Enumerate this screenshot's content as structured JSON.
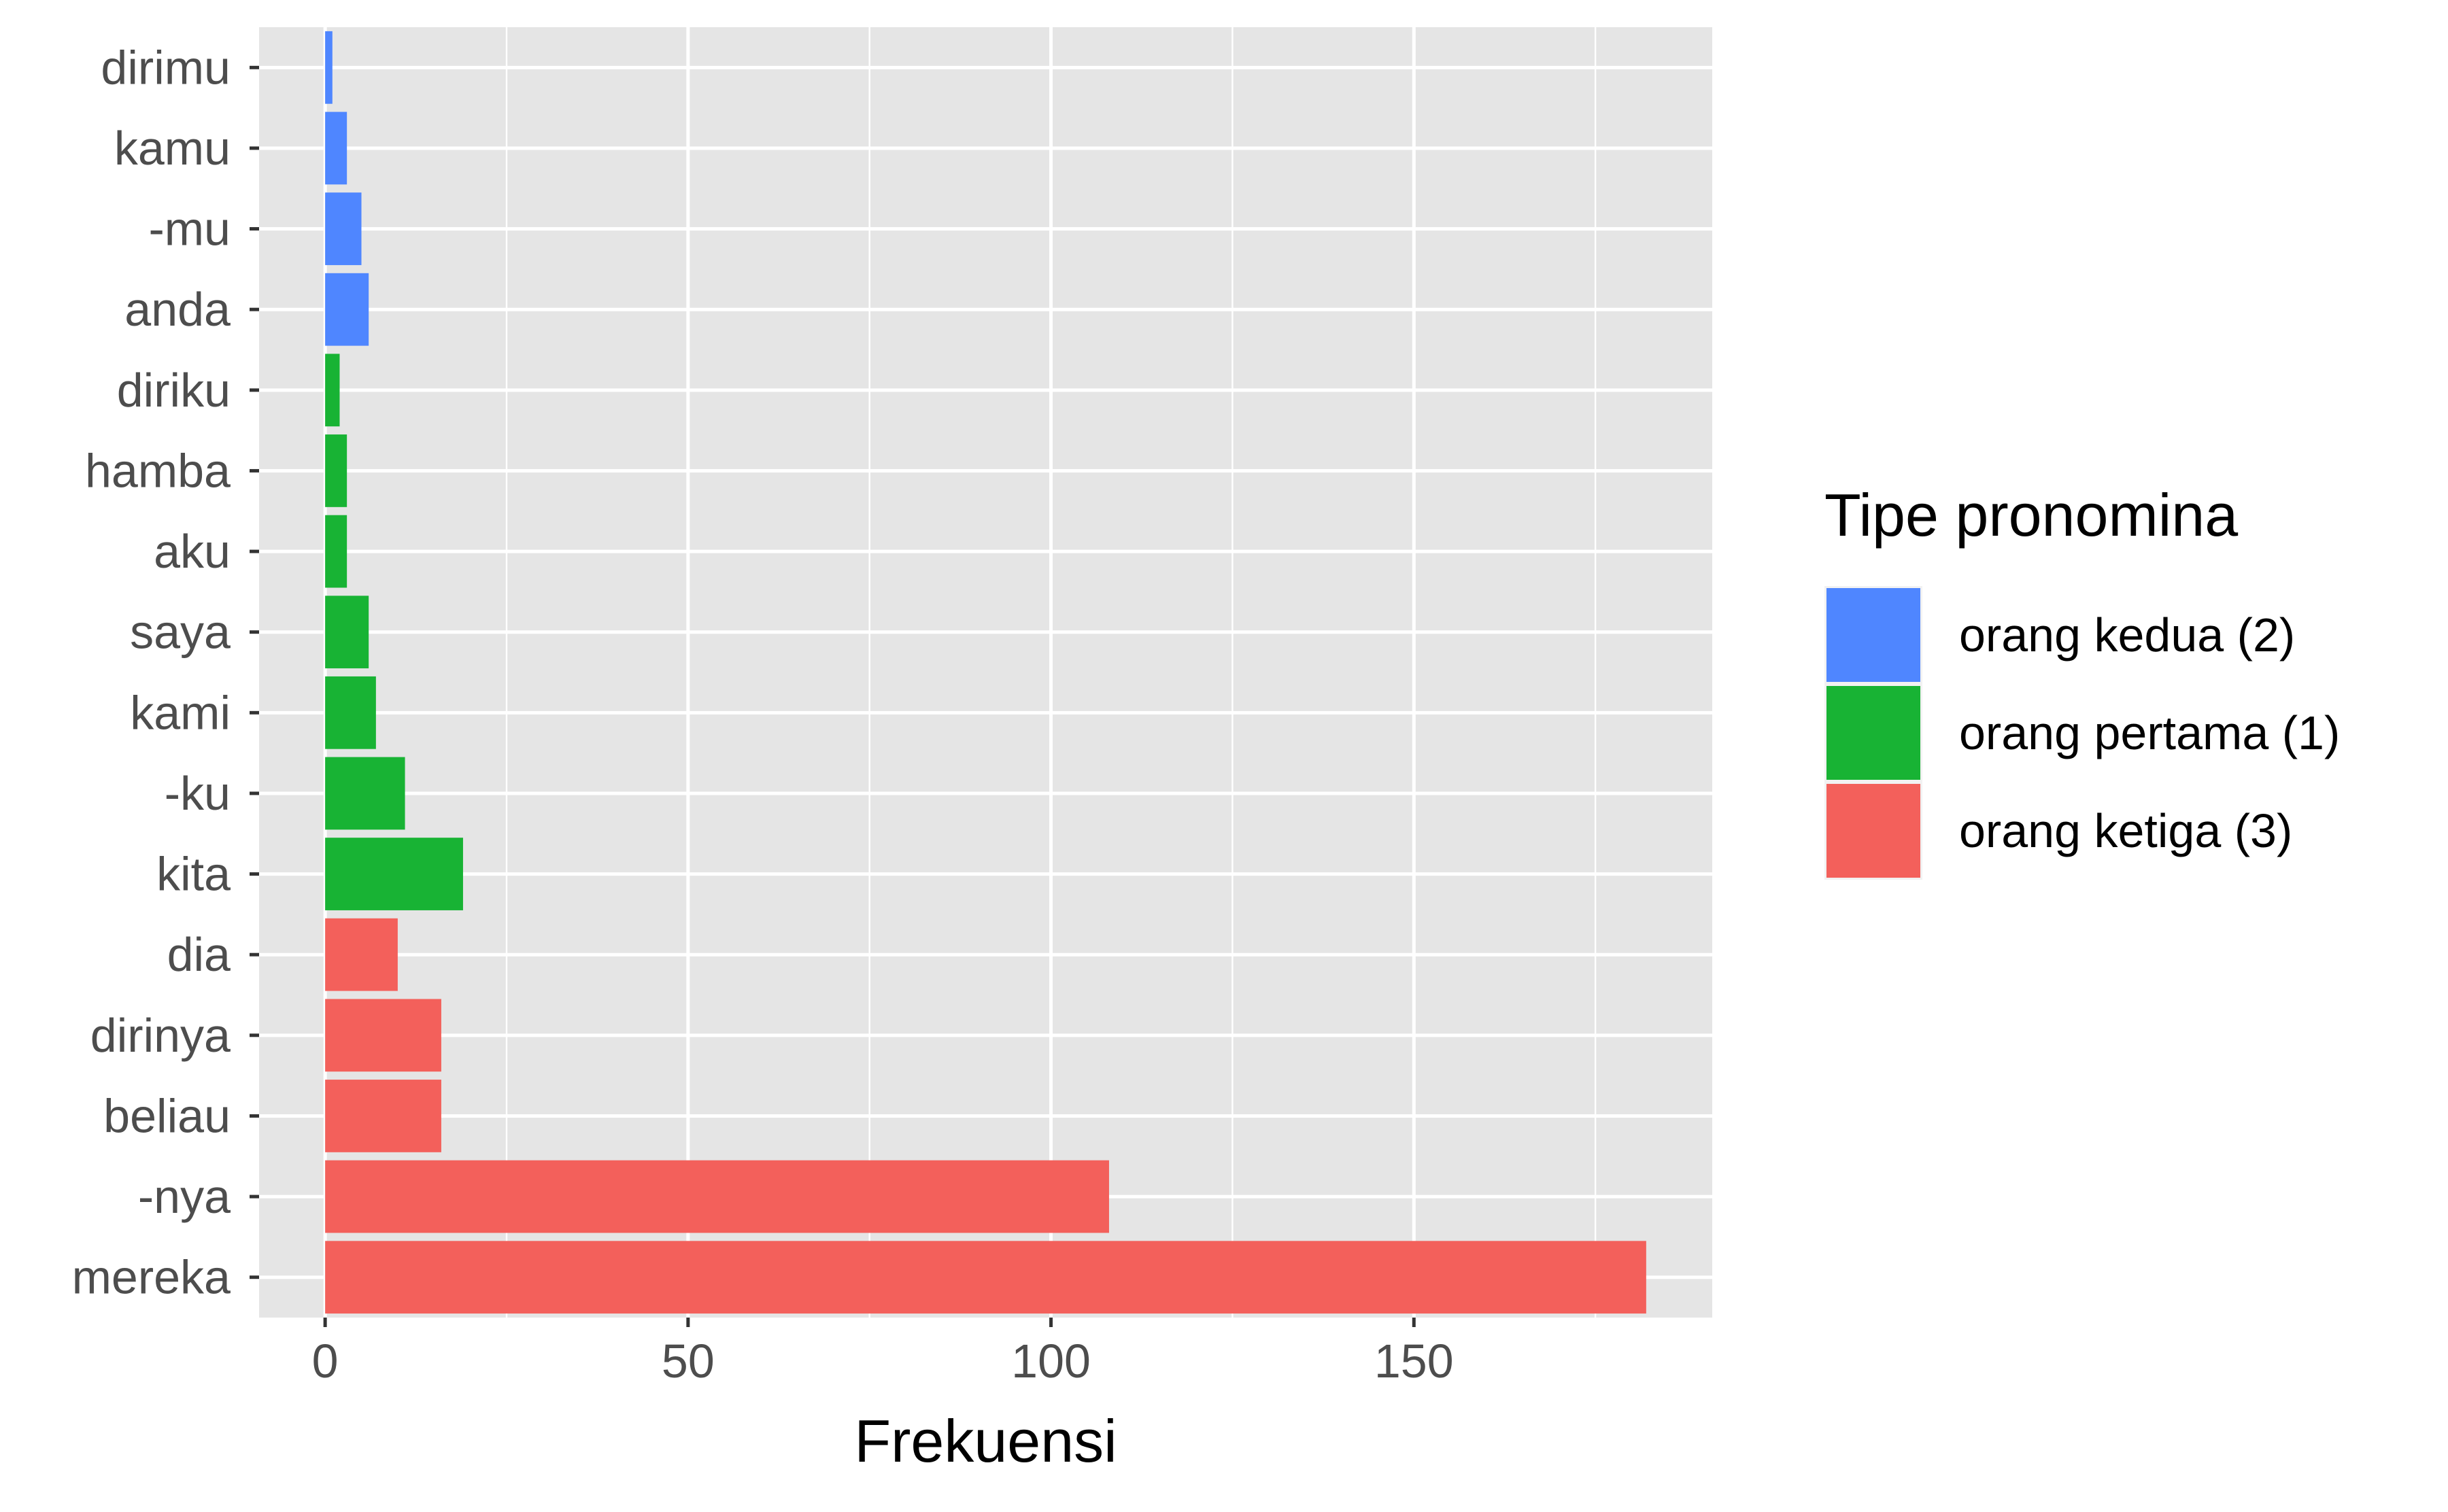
{
  "chart_data": {
    "type": "bar",
    "orientation": "horizontal",
    "title": "",
    "xlabel": "Frekuensi",
    "ylabel": "",
    "xlim": [
      -9.1,
      191.1
    ],
    "xticks": [
      0,
      50,
      100,
      150
    ],
    "grid": true,
    "legend": {
      "title": "Tipe pronomina",
      "placement": "right",
      "entries": [
        {
          "label": "orang kedua (2)",
          "color": "#4F86FF"
        },
        {
          "label": "orang pertama (1)",
          "color": "#18B334"
        },
        {
          "label": "orang ketiga (3)",
          "color": "#F3605B"
        }
      ]
    },
    "categories": [
      "dirimu",
      "kamu",
      "-mu",
      "anda",
      "diriku",
      "hamba",
      "aku",
      "saya",
      "kami",
      "-ku",
      "kita",
      "dia",
      "dirinya",
      "beliau",
      "-nya",
      "mereka"
    ],
    "values": [
      1,
      3,
      5,
      6,
      2,
      3,
      3,
      6,
      7,
      11,
      19,
      10,
      16,
      16,
      108,
      182
    ],
    "groups": [
      "orang kedua (2)",
      "orang kedua (2)",
      "orang kedua (2)",
      "orang kedua (2)",
      "orang pertama (1)",
      "orang pertama (1)",
      "orang pertama (1)",
      "orang pertama (1)",
      "orang pertama (1)",
      "orang pertama (1)",
      "orang pertama (1)",
      "orang ketiga (3)",
      "orang ketiga (3)",
      "orang ketiga (3)",
      "orang ketiga (3)",
      "orang ketiga (3)"
    ]
  },
  "colors": {
    "panel_background": "#E5E5E5",
    "grid_line": "#FFFFFF",
    "tick_text": "#4D4D4D",
    "axis_tick": "#333333"
  }
}
